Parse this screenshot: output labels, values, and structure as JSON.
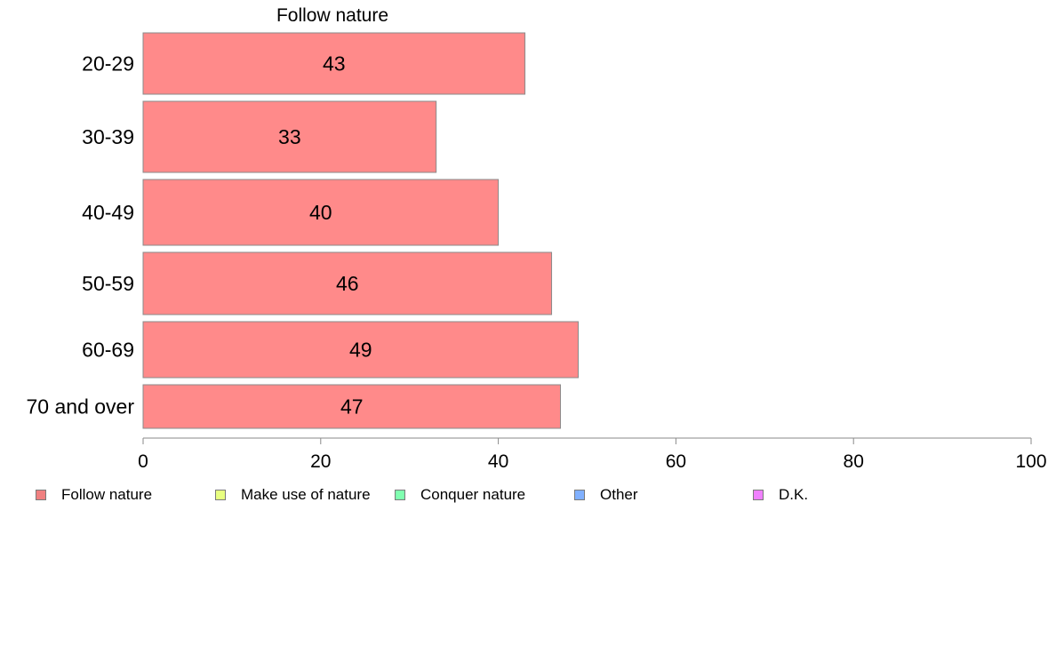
{
  "chart_data": {
    "type": "bar",
    "orientation": "horizontal",
    "title": "Follow nature",
    "categories": [
      "20-29",
      "30-39",
      "40-49",
      "50-59",
      "60-69",
      "70 and over"
    ],
    "series": [
      {
        "name": "Follow nature",
        "values": [
          43,
          33,
          40,
          46,
          49,
          47
        ]
      }
    ],
    "data_labels": [
      "43",
      "33",
      "40",
      "46",
      "49",
      "47"
    ],
    "xlim": [
      0,
      100
    ],
    "x_ticks": [
      "0",
      "20",
      "40",
      "60",
      "80",
      "100"
    ],
    "xlabel": "",
    "ylabel": "",
    "grid": false,
    "legend_position": "bottom",
    "bar_color": "#ff8a8a",
    "legend": [
      {
        "label": "Follow nature",
        "color": "#f08080"
      },
      {
        "label": "Make use of nature",
        "color": "#e8ff80"
      },
      {
        "label": "Conquer nature",
        "color": "#80ffb0"
      },
      {
        "label": "Other",
        "color": "#80b0ff"
      },
      {
        "label": "D.K.",
        "color": "#f080ff"
      }
    ]
  }
}
